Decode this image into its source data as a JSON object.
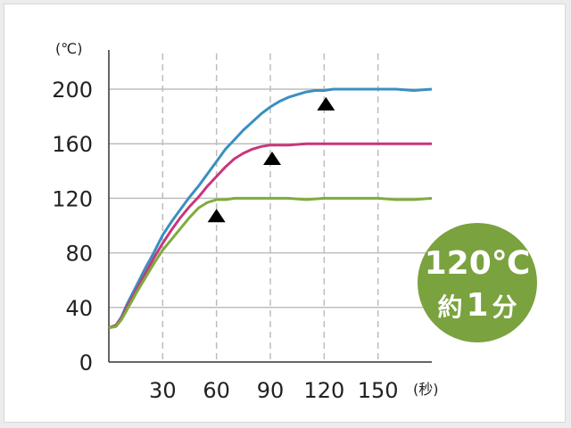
{
  "chart_data": {
    "type": "line",
    "y_unit": "(℃)",
    "x_unit": "(秒)",
    "xlim": [
      0,
      180
    ],
    "ylim": [
      0,
      200
    ],
    "x_ticks": [
      30,
      60,
      90,
      120,
      150
    ],
    "y_ticks": [
      0,
      40,
      80,
      120,
      160,
      200
    ],
    "grid": {
      "horizontal": true,
      "vertical_dashed": true
    },
    "series": [
      {
        "color": "#3a8fc0",
        "x": [
          0,
          4,
          7,
          10,
          15,
          20,
          25,
          30,
          35,
          40,
          45,
          50,
          55,
          60,
          65,
          70,
          75,
          80,
          85,
          90,
          95,
          100,
          105,
          110,
          115,
          120,
          125,
          130,
          140,
          150,
          160,
          170,
          180
        ],
        "y": [
          25,
          27,
          33,
          42,
          55,
          68,
          80,
          93,
          103,
          112,
          121,
          129,
          138,
          147,
          156,
          163,
          170,
          176,
          182,
          187,
          191,
          194,
          196,
          198,
          199,
          199,
          200,
          200,
          200,
          200,
          200,
          199,
          200
        ]
      },
      {
        "color": "#c8377a",
        "x": [
          0,
          4,
          7,
          10,
          15,
          20,
          25,
          30,
          35,
          40,
          45,
          50,
          55,
          60,
          65,
          70,
          75,
          80,
          85,
          90,
          95,
          100,
          110,
          120,
          130,
          140,
          150,
          160,
          170,
          180
        ],
        "y": [
          25,
          27,
          32,
          40,
          52,
          64,
          76,
          87,
          97,
          106,
          114,
          121,
          129,
          136,
          143,
          149,
          153,
          156,
          158,
          159,
          159,
          159,
          160,
          160,
          160,
          160,
          160,
          160,
          160,
          160
        ]
      },
      {
        "color": "#7dac3c",
        "x": [
          0,
          4,
          7,
          10,
          15,
          20,
          25,
          30,
          35,
          40,
          45,
          50,
          55,
          60,
          65,
          70,
          80,
          90,
          100,
          110,
          120,
          130,
          140,
          150,
          160,
          170,
          180
        ],
        "y": [
          25,
          26,
          31,
          38,
          50,
          61,
          72,
          82,
          90,
          98,
          106,
          113,
          117,
          119,
          119,
          120,
          120,
          120,
          120,
          119,
          120,
          120,
          120,
          120,
          119,
          119,
          120
        ]
      }
    ],
    "markers": [
      {
        "x": 60,
        "y": 107
      },
      {
        "x": 91,
        "y": 149
      },
      {
        "x": 121,
        "y": 189
      }
    ]
  },
  "badge": {
    "line1": "120℃",
    "line2_a": "約",
    "line2_b": "1",
    "line2_c": "分",
    "color": "#7aa23f"
  }
}
